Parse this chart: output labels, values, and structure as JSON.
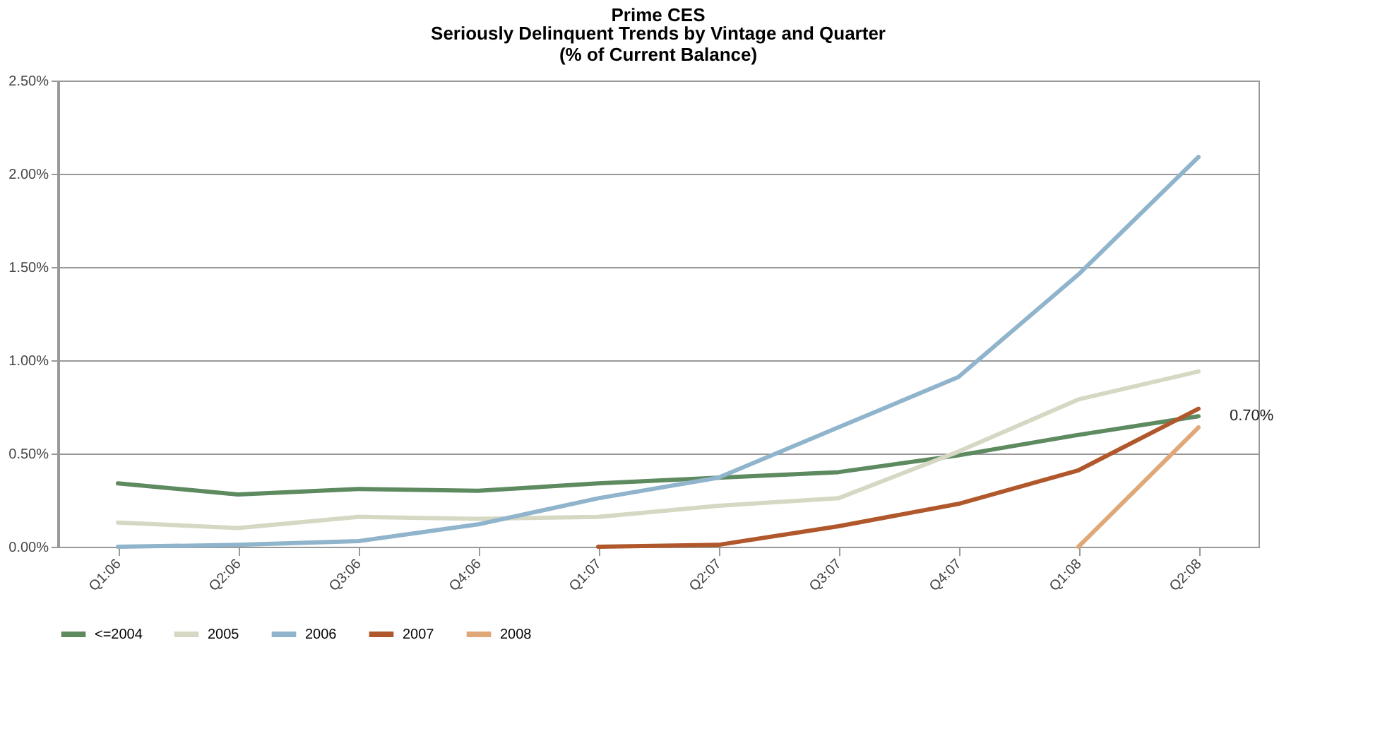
{
  "chart_data": {
    "type": "line",
    "title": "Prime CES",
    "subtitle": "Seriously Delinquent Trends by Vintage and Quarter\n(% of Current Balance)",
    "categories": [
      "Q1:06",
      "Q2:06",
      "Q3:06",
      "Q4:06",
      "Q1:07",
      "Q2:07",
      "Q3:07",
      "Q4:07",
      "Q1:08",
      "Q2:08"
    ],
    "series": [
      {
        "name": "<=2004",
        "color": "#5e8a60",
        "values": [
          0.34,
          0.28,
          0.31,
          0.3,
          0.34,
          0.37,
          0.4,
          0.49,
          0.6,
          0.7
        ]
      },
      {
        "name": "2005",
        "color": "#d6d8c4",
        "values": [
          0.13,
          0.1,
          0.16,
          0.15,
          0.16,
          0.22,
          0.26,
          0.51,
          0.79,
          0.94
        ]
      },
      {
        "name": "2006",
        "color": "#8fb4cc",
        "values": [
          0.0,
          0.01,
          0.03,
          0.12,
          0.26,
          0.37,
          0.64,
          0.91,
          1.46,
          2.09
        ]
      },
      {
        "name": "2007",
        "color": "#b0582c",
        "values": [
          null,
          null,
          null,
          null,
          0.0,
          0.01,
          0.11,
          0.23,
          0.41,
          0.74
        ]
      },
      {
        "name": "2008",
        "color": "#e0a878",
        "values": [
          null,
          null,
          null,
          null,
          null,
          null,
          null,
          null,
          0.0,
          0.64
        ]
      }
    ],
    "ylim": [
      0,
      2.5
    ],
    "yticks": [
      {
        "value": 0,
        "label": "0.00%"
      },
      {
        "value": 0.5,
        "label": "0.50%"
      },
      {
        "value": 1,
        "label": "1.00%"
      },
      {
        "value": 1.5,
        "label": "1.50%"
      },
      {
        "value": 2,
        "label": "2.00%"
      },
      {
        "value": 2.5,
        "label": "2.50%"
      }
    ],
    "grid": "y",
    "legend": "bottom",
    "marker": "none",
    "line_style": "solid",
    "annotations": [
      {
        "text": "0.70%",
        "x": "Q2:08",
        "y": 0.7
      }
    ]
  }
}
